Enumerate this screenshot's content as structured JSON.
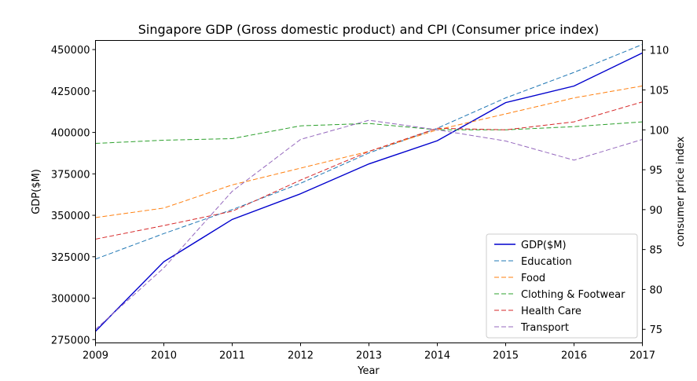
{
  "chart_data": {
    "type": "line",
    "title": "Singapore GDP (Gross domestic product) and CPI (Consumer price index)",
    "xlabel": "Year",
    "ylabel_left": "GDP($M)",
    "ylabel_right": "consumer price index",
    "x": [
      2009,
      2010,
      2011,
      2012,
      2013,
      2014,
      2015,
      2016,
      2017
    ],
    "ylim_left": [
      273000,
      455500
    ],
    "ylim_right": [
      73.3,
      111.2
    ],
    "yticks_left": [
      "275000",
      "300000",
      "325000",
      "350000",
      "375000",
      "400000",
      "425000",
      "450000"
    ],
    "yticks_right": [
      "75",
      "80",
      "85",
      "90",
      "95",
      "100",
      "105",
      "110"
    ],
    "legend_position": "lower-right",
    "grid": false,
    "series": [
      {
        "name": "GDP($M)",
        "axis": "left",
        "color": "#0000cd",
        "style": "solid",
        "values": [
          280000,
          322000,
          347500,
          363000,
          381000,
          395000,
          418000,
          428000,
          448000
        ]
      },
      {
        "name": "Education",
        "axis": "right",
        "color": "#1f77b4",
        "style": "dashed",
        "values": [
          83.8,
          87.0,
          90.0,
          93.3,
          97.1,
          100.2,
          104.0,
          107.2,
          110.7
        ]
      },
      {
        "name": "Food",
        "axis": "right",
        "color": "#ff7f0e",
        "style": "dashed",
        "values": [
          89.0,
          90.2,
          93.1,
          95.2,
          97.3,
          100.0,
          102.0,
          104.0,
          105.5
        ]
      },
      {
        "name": "Clothing & Footwear",
        "axis": "right",
        "color": "#2ca02c",
        "style": "dashed",
        "values": [
          98.3,
          98.7,
          98.9,
          100.5,
          100.8,
          100.0,
          100.0,
          100.4,
          101.0
        ]
      },
      {
        "name": "Health Care",
        "axis": "right",
        "color": "#d62728",
        "style": "dashed",
        "values": [
          86.3,
          88.0,
          89.8,
          93.7,
          97.3,
          100.2,
          100.0,
          101.0,
          103.5
        ]
      },
      {
        "name": "Transport",
        "axis": "right",
        "color": "#9467bd",
        "style": "dashed",
        "values": [
          75.0,
          82.7,
          92.3,
          98.8,
          101.2,
          100.0,
          98.6,
          96.2,
          98.8
        ]
      }
    ]
  }
}
